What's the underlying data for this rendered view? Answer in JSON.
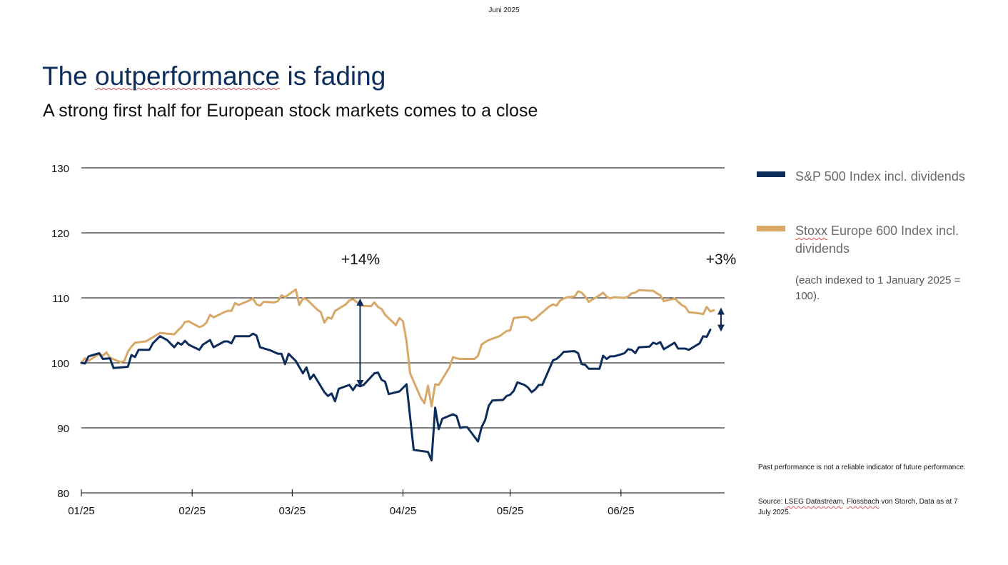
{
  "header": {
    "date": "Juni 2025"
  },
  "title": {
    "main_pre": "The ",
    "main_squiggle": "outperformance",
    "main_post": " is fading",
    "subtitle": "A strong first half for European stock markets comes to a close"
  },
  "legend": {
    "series1": "S&P 500 Index incl. dividends",
    "series2_squiggle": "Stoxx",
    "series2_rest": " Europe 600 Index incl. dividends",
    "note": "(each indexed to 1 January 2025 = 100)."
  },
  "footnotes": {
    "disclaimer": "Past performance is not a reliable indicator of future performance.",
    "source_pre": "Source: ",
    "source_squiggle1": "LSEG Datastream",
    "source_mid": ", ",
    "source_squiggle2": "Flossbach",
    "source_post": " von Storch, Data as at 7 July 2025."
  },
  "colors": {
    "sp500": "#0c2d5c",
    "stoxx": "#d7a868",
    "grid": "#000000",
    "title": "#0c2d5c"
  },
  "chart_data": {
    "type": "line",
    "title": "",
    "xlabel": "",
    "ylabel": "",
    "ylim": [
      80,
      130
    ],
    "yticks": [
      80,
      90,
      100,
      110,
      120,
      130
    ],
    "xlim_days": [
      1,
      181
    ],
    "xticks": [
      {
        "label": "01/25",
        "day": 1
      },
      {
        "label": "02/25",
        "day": 32
      },
      {
        "label": "03/25",
        "day": 60
      },
      {
        "label": "04/25",
        "day": 91
      },
      {
        "label": "05/25",
        "day": 121
      },
      {
        "label": "06/25",
        "day": 152
      }
    ],
    "series": [
      {
        "name": "S&P 500 Index incl. dividends",
        "color": "#0c2d5c",
        "points": [
          [
            1,
            100
          ],
          [
            2,
            99.9
          ],
          [
            3,
            101
          ],
          [
            6,
            101.5
          ],
          [
            7,
            100.6
          ],
          [
            9,
            100.7
          ],
          [
            10,
            99.2
          ],
          [
            14,
            99.4
          ],
          [
            15,
            101.2
          ],
          [
            16,
            100.9
          ],
          [
            17,
            102
          ],
          [
            20,
            102
          ],
          [
            21,
            103
          ],
          [
            23,
            104.1
          ],
          [
            25,
            103.5
          ],
          [
            27,
            102.4
          ],
          [
            28,
            103.1
          ],
          [
            29,
            102.8
          ],
          [
            30,
            103.4
          ],
          [
            31,
            102.8
          ],
          [
            34,
            102
          ],
          [
            35,
            102.8
          ],
          [
            37,
            103.5
          ],
          [
            38,
            102.4
          ],
          [
            41,
            103.3
          ],
          [
            42,
            103.3
          ],
          [
            43,
            103
          ],
          [
            44,
            104.1
          ],
          [
            48,
            104.1
          ],
          [
            49,
            104.5
          ],
          [
            50,
            104.2
          ],
          [
            51,
            102.4
          ],
          [
            54,
            101.9
          ],
          [
            56,
            101.4
          ],
          [
            57,
            101.4
          ],
          [
            58,
            99.8
          ],
          [
            59,
            101.4
          ],
          [
            61,
            100.3
          ],
          [
            63,
            98.4
          ],
          [
            64,
            99.3
          ],
          [
            65,
            97.5
          ],
          [
            66,
            98.2
          ],
          [
            69,
            95.5
          ],
          [
            70,
            94.9
          ],
          [
            71,
            95.3
          ],
          [
            72,
            94.1
          ],
          [
            73,
            96
          ],
          [
            76,
            96.6
          ],
          [
            77,
            95.8
          ],
          [
            78,
            96.6
          ],
          [
            79,
            96.4
          ],
          [
            80,
            96.6
          ],
          [
            83,
            98.4
          ],
          [
            84,
            98.5
          ],
          [
            85,
            97.4
          ],
          [
            86,
            97.1
          ],
          [
            87,
            95.2
          ],
          [
            90,
            95.6
          ],
          [
            92,
            96.7
          ],
          [
            94,
            86.6
          ],
          [
            98,
            86.3
          ],
          [
            99,
            85
          ],
          [
            100,
            93.1
          ],
          [
            101,
            89.8
          ],
          [
            102,
            91.4
          ],
          [
            105,
            92.1
          ],
          [
            106,
            91.8
          ],
          [
            107,
            90
          ],
          [
            108,
            90.1
          ],
          [
            109,
            90.1
          ],
          [
            112,
            87.9
          ],
          [
            113,
            90.1
          ],
          [
            114,
            91.2
          ],
          [
            115,
            93.4
          ],
          [
            116,
            94.2
          ],
          [
            119,
            94.3
          ],
          [
            120,
            94.9
          ],
          [
            121,
            95.1
          ],
          [
            122,
            95.7
          ],
          [
            123,
            97
          ],
          [
            125,
            96.6
          ],
          [
            126,
            96.2
          ],
          [
            127,
            95.5
          ],
          [
            128,
            95.9
          ],
          [
            129,
            96.6
          ],
          [
            130,
            96.6
          ],
          [
            133,
            100.4
          ],
          [
            134,
            100.6
          ],
          [
            135,
            101.1
          ],
          [
            136,
            101.7
          ],
          [
            139,
            101.8
          ],
          [
            140,
            101.5
          ],
          [
            141,
            99.8
          ],
          [
            142,
            99.7
          ],
          [
            143,
            99.1
          ],
          [
            146,
            99.1
          ],
          [
            147,
            101.1
          ],
          [
            148,
            100.6
          ],
          [
            149,
            101
          ],
          [
            150,
            101
          ],
          [
            152,
            101.3
          ],
          [
            153,
            101.5
          ],
          [
            154,
            102.1
          ],
          [
            155,
            102
          ],
          [
            156,
            101.5
          ],
          [
            157,
            102.4
          ],
          [
            160,
            102.5
          ],
          [
            161,
            103.1
          ],
          [
            162,
            102.9
          ],
          [
            163,
            103.2
          ],
          [
            164,
            102.1
          ],
          [
            167,
            103.1
          ],
          [
            168,
            102.2
          ],
          [
            170,
            102.2
          ],
          [
            171,
            102
          ],
          [
            174,
            103
          ],
          [
            175,
            104.1
          ],
          [
            176,
            104
          ],
          [
            177,
            105.1
          ]
        ]
      },
      {
        "name": "Stoxx Europe 600 Index incl. dividends",
        "color": "#d7a868",
        "points": [
          [
            1,
            100
          ],
          [
            2,
            100.7
          ],
          [
            3,
            100.3
          ],
          [
            6,
            101.4
          ],
          [
            7,
            101.1
          ],
          [
            8,
            101.6
          ],
          [
            9,
            100.8
          ],
          [
            12,
            100.1
          ],
          [
            13,
            100.3
          ],
          [
            14,
            101.7
          ],
          [
            15,
            102.5
          ],
          [
            16,
            103.1
          ],
          [
            19,
            103.3
          ],
          [
            20,
            103.6
          ],
          [
            23,
            104.6
          ],
          [
            27,
            104.4
          ],
          [
            28,
            105
          ],
          [
            29,
            105.5
          ],
          [
            30,
            106.3
          ],
          [
            31,
            106.4
          ],
          [
            34,
            105.5
          ],
          [
            35,
            105.7
          ],
          [
            36,
            106.2
          ],
          [
            37,
            107.4
          ],
          [
            38,
            107
          ],
          [
            41,
            107.8
          ],
          [
            42,
            108
          ],
          [
            43,
            108
          ],
          [
            44,
            109.2
          ],
          [
            45,
            108.9
          ],
          [
            48,
            109.6
          ],
          [
            49,
            109.9
          ],
          [
            50,
            109
          ],
          [
            51,
            108.8
          ],
          [
            52,
            109.4
          ],
          [
            55,
            109.3
          ],
          [
            56,
            109.5
          ],
          [
            57,
            110.4
          ],
          [
            58,
            110.1
          ],
          [
            61,
            111.3
          ],
          [
            62,
            108.9
          ],
          [
            63,
            109.9
          ],
          [
            64,
            109.8
          ],
          [
            67,
            108.2
          ],
          [
            68,
            107.8
          ],
          [
            69,
            106.2
          ],
          [
            70,
            107
          ],
          [
            71,
            106.8
          ],
          [
            72,
            108
          ],
          [
            75,
            109
          ],
          [
            76,
            109.6
          ],
          [
            77,
            109.8
          ],
          [
            78,
            109.4
          ],
          [
            79,
            108.8
          ],
          [
            82,
            108.7
          ],
          [
            83,
            109.3
          ],
          [
            84,
            108.6
          ],
          [
            85,
            108.3
          ],
          [
            86,
            107.4
          ],
          [
            89,
            105.8
          ],
          [
            90,
            106.9
          ],
          [
            91,
            106.4
          ],
          [
            92,
            103.3
          ],
          [
            93,
            98.4
          ],
          [
            96,
            94.6
          ],
          [
            97,
            93.8
          ],
          [
            98,
            96.5
          ],
          [
            99,
            93.3
          ],
          [
            100,
            96.7
          ],
          [
            101,
            96.6
          ],
          [
            104,
            99.3
          ],
          [
            105,
            100.9
          ],
          [
            106,
            100.7
          ],
          [
            107,
            100.6
          ],
          [
            110,
            100.6
          ],
          [
            111,
            100.6
          ],
          [
            112,
            101.1
          ],
          [
            113,
            102.8
          ],
          [
            114,
            103.2
          ],
          [
            115,
            103.5
          ],
          [
            118,
            104.1
          ],
          [
            119,
            104.5
          ],
          [
            120,
            104.9
          ],
          [
            121,
            105
          ],
          [
            122,
            106.9
          ],
          [
            125,
            107.1
          ],
          [
            126,
            107
          ],
          [
            127,
            106.5
          ],
          [
            128,
            106.8
          ],
          [
            129,
            107.3
          ],
          [
            132,
            108.7
          ],
          [
            133,
            109
          ],
          [
            134,
            108.8
          ],
          [
            135,
            109.6
          ],
          [
            136,
            109.9
          ],
          [
            137,
            110.1
          ],
          [
            139,
            110.2
          ],
          [
            140,
            111
          ],
          [
            141,
            110.8
          ],
          [
            142,
            110.2
          ],
          [
            143,
            109.4
          ],
          [
            146,
            110.4
          ],
          [
            147,
            110.8
          ],
          [
            148,
            110.2
          ],
          [
            149,
            109.9
          ],
          [
            150,
            110.1
          ],
          [
            153,
            110
          ],
          [
            154,
            110.2
          ],
          [
            155,
            110.7
          ],
          [
            156,
            110.8
          ],
          [
            157,
            111.2
          ],
          [
            160,
            111.1
          ],
          [
            161,
            111.1
          ],
          [
            162,
            110.7
          ],
          [
            163,
            110.4
          ],
          [
            164,
            109.5
          ],
          [
            167,
            109.9
          ],
          [
            168,
            109.4
          ],
          [
            169,
            108.9
          ],
          [
            170,
            108.6
          ],
          [
            171,
            107.8
          ],
          [
            174,
            107.6
          ],
          [
            175,
            107.5
          ],
          [
            176,
            108.6
          ],
          [
            177,
            107.9
          ],
          [
            178,
            108.1
          ]
        ]
      }
    ],
    "annotations": [
      {
        "text": "+14%",
        "day": 79,
        "from": 109.8,
        "to": 96.4
      },
      {
        "text": "+3%",
        "day": 180,
        "from": 108.4,
        "to": 104.9
      }
    ]
  }
}
